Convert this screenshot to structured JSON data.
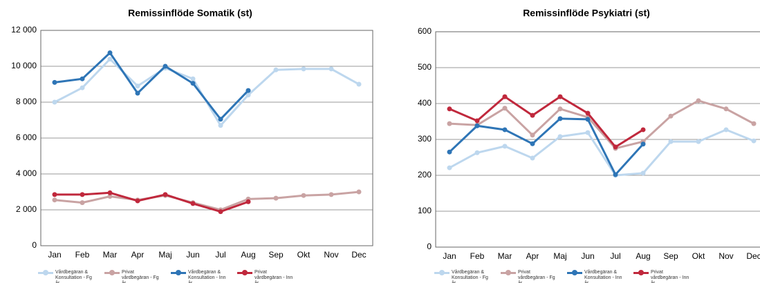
{
  "chart_data": [
    {
      "type": "line",
      "title": "Remissinflöde Somatik (st)",
      "categories": [
        "Jan",
        "Feb",
        "Mar",
        "Apr",
        "Maj",
        "Jun",
        "Jul",
        "Aug",
        "Sep",
        "Okt",
        "Nov",
        "Dec"
      ],
      "ylim": [
        0,
        12000
      ],
      "yticks": [
        0,
        {
          "value": 2000,
          "label": "2 000"
        },
        {
          "value": 4000,
          "label": "4 000"
        },
        {
          "value": 6000,
          "label": "6 000"
        },
        {
          "value": 8000,
          "label": "8 000"
        },
        {
          "value": 10000,
          "label": "10 000"
        },
        {
          "value": 12000,
          "label": "12 000"
        }
      ],
      "grid": true,
      "series": [
        {
          "name": "Vårdbegäran & Konsultation - Fg år",
          "color": "#bdd7ee",
          "values": [
            8000,
            8800,
            10400,
            8900,
            9900,
            9300,
            6700,
            8400,
            9800,
            9850,
            9850,
            9000
          ]
        },
        {
          "name": "Privat vårdbegäran - Fg år",
          "color": "#c9a3a3",
          "values": [
            2550,
            2400,
            2750,
            2550,
            2800,
            2400,
            2000,
            2600,
            2650,
            2800,
            2850,
            3000
          ]
        },
        {
          "name": "Vårdbegäran & Konsultation - Inn år",
          "color": "#2e75b6",
          "values": [
            9100,
            9300,
            10750,
            8500,
            10000,
            9050,
            7050,
            8650,
            null,
            null,
            null,
            null
          ]
        },
        {
          "name": "Privat vårdbegäran - Inn år",
          "color": "#c0283c",
          "values": [
            2850,
            2850,
            2950,
            2500,
            2850,
            2350,
            1900,
            2450,
            null,
            null,
            null,
            null
          ]
        }
      ]
    },
    {
      "type": "line",
      "title": "Remissinflöde Psykiatri (st)",
      "categories": [
        "Jan",
        "Feb",
        "Mar",
        "Apr",
        "Maj",
        "Jun",
        "Jul",
        "Aug",
        "Sep",
        "Okt",
        "Nov",
        "Dec"
      ],
      "ylim": [
        0,
        600
      ],
      "yticks": [
        0,
        100,
        200,
        300,
        400,
        500,
        600
      ],
      "grid": true,
      "series": [
        {
          "name": "Vårdbegäran & Konsultation - Fg år",
          "color": "#bdd7ee",
          "values": [
            221,
            263,
            281,
            248,
            308,
            319,
            200,
            206,
            294,
            294,
            327,
            296
          ]
        },
        {
          "name": "Privat vårdbegäran - Fg år",
          "color": "#c9a3a3",
          "values": [
            344,
            340,
            387,
            312,
            385,
            362,
            275,
            294,
            365,
            408,
            385,
            344
          ]
        },
        {
          "name": "Vårdbegäran & Konsultation - Inn år",
          "color": "#2e75b6",
          "values": [
            265,
            338,
            327,
            288,
            358,
            356,
            202,
            287,
            null,
            null,
            null,
            null
          ]
        },
        {
          "name": "Privat vårdbegäran - Inn år",
          "color": "#c0283c",
          "values": [
            385,
            352,
            419,
            367,
            419,
            373,
            279,
            327,
            null,
            null,
            null,
            null
          ]
        }
      ]
    }
  ]
}
